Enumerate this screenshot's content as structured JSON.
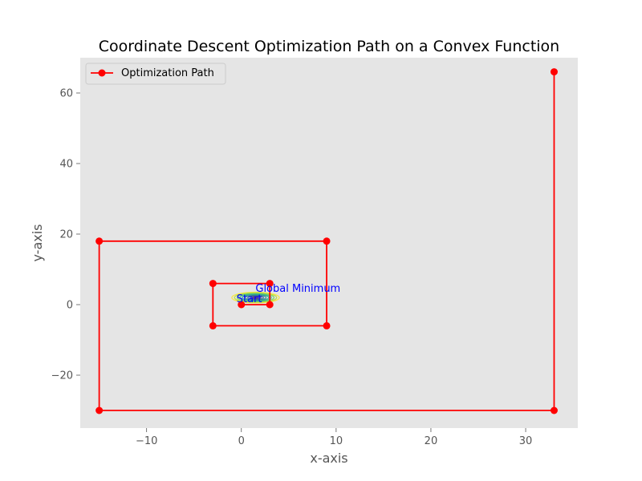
{
  "chart_data": {
    "type": "line",
    "title": "Coordinate Descent Optimization Path on a Convex Function",
    "xlabel": "x-axis",
    "ylabel": "y-axis",
    "xlim": [
      -17,
      35.5
    ],
    "ylim": [
      -35,
      70
    ],
    "xticks": [
      -10,
      0,
      10,
      20,
      30
    ],
    "yticks": [
      -20,
      0,
      20,
      40,
      60
    ],
    "xtick_labels": [
      "−10",
      "0",
      "10",
      "20",
      "30"
    ],
    "ytick_labels": [
      "−20",
      "0",
      "20",
      "40",
      "60"
    ],
    "grid": false,
    "legend": "top-left",
    "background": "#e5e5e5",
    "series": [
      {
        "name": "Optimization Path",
        "color": "#ff0000",
        "marker": "circle",
        "x": [
          0,
          3,
          3,
          -3,
          -3,
          9,
          9,
          -15,
          -15,
          33,
          33
        ],
        "y": [
          0,
          0,
          6,
          6,
          -6,
          -6,
          18,
          18,
          -30,
          -30,
          66
        ]
      }
    ],
    "contour": {
      "colormap": "viridis",
      "center": [
        1.5,
        2
      ],
      "extent_x": [
        -1,
        4
      ],
      "extent_y": [
        0.5,
        3.5
      ]
    },
    "annotations": [
      {
        "text": "Start",
        "x": 0,
        "y": 0,
        "color": "#0000ff"
      },
      {
        "text": "Global Minimum",
        "x": 2,
        "y": 3,
        "color": "#0000ff"
      }
    ]
  }
}
